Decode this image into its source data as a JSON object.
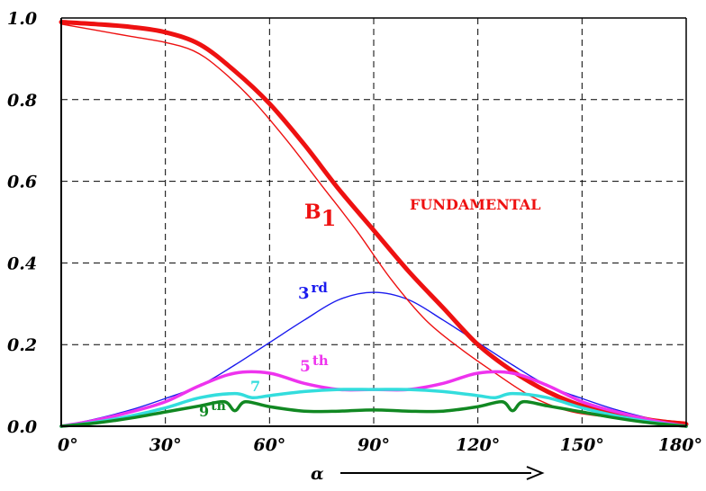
{
  "chart_data": {
    "type": "line",
    "xlabel": "α",
    "ylabel": "",
    "xlim": [
      0,
      180
    ],
    "ylim": [
      0,
      1.0
    ],
    "grid": true,
    "x_ticks": [
      {
        "value": 0,
        "label": "0°"
      },
      {
        "value": 30,
        "label": "30°"
      },
      {
        "value": 60,
        "label": "60°"
      },
      {
        "value": 90,
        "label": "90°"
      },
      {
        "value": 120,
        "label": "120°"
      },
      {
        "value": 150,
        "label": "150°"
      },
      {
        "value": 180,
        "label": "180°"
      }
    ],
    "y_ticks": [
      {
        "value": 0.0,
        "label": "0.0"
      },
      {
        "value": 0.2,
        "label": "0.2"
      },
      {
        "value": 0.4,
        "label": "0.4"
      },
      {
        "value": 0.6,
        "label": "0.6"
      },
      {
        "value": 0.8,
        "label": "0.8"
      },
      {
        "value": 1.0,
        "label": "1.0"
      }
    ],
    "series": [
      {
        "label_main": "B",
        "label_sub": "1",
        "extra_label": "FUNDAMENTAL",
        "color": "#ee1111",
        "style": "thick",
        "points": [
          [
            0,
            0.99
          ],
          [
            10,
            0.985
          ],
          [
            20,
            0.978
          ],
          [
            30,
            0.965
          ],
          [
            40,
            0.935
          ],
          [
            50,
            0.87
          ],
          [
            60,
            0.79
          ],
          [
            70,
            0.69
          ],
          [
            80,
            0.58
          ],
          [
            90,
            0.48
          ],
          [
            100,
            0.38
          ],
          [
            110,
            0.29
          ],
          [
            120,
            0.2
          ],
          [
            130,
            0.135
          ],
          [
            140,
            0.085
          ],
          [
            150,
            0.05
          ],
          [
            160,
            0.03
          ],
          [
            170,
            0.015
          ],
          [
            180,
            0.005
          ]
        ]
      },
      {
        "name": "",
        "color": "#ee1111",
        "style": "thin",
        "points": [
          [
            0,
            0.985
          ],
          [
            10,
            0.97
          ],
          [
            20,
            0.955
          ],
          [
            30,
            0.94
          ],
          [
            38,
            0.92
          ],
          [
            45,
            0.88
          ],
          [
            55,
            0.8
          ],
          [
            65,
            0.7
          ],
          [
            75,
            0.59
          ],
          [
            85,
            0.48
          ],
          [
            95,
            0.36
          ],
          [
            105,
            0.26
          ],
          [
            115,
            0.19
          ],
          [
            125,
            0.13
          ],
          [
            135,
            0.075
          ],
          [
            145,
            0.04
          ],
          [
            155,
            0.025
          ],
          [
            165,
            0.02
          ],
          [
            180,
            0.01
          ]
        ]
      },
      {
        "label_main": "3",
        "label_sup": "rd",
        "color": "#1a1aee",
        "style": "thin",
        "points": [
          [
            0,
            0.0
          ],
          [
            10,
            0.018
          ],
          [
            20,
            0.04
          ],
          [
            30,
            0.068
          ],
          [
            40,
            0.1
          ],
          [
            50,
            0.15
          ],
          [
            60,
            0.205
          ],
          [
            70,
            0.26
          ],
          [
            80,
            0.31
          ],
          [
            90,
            0.328
          ],
          [
            100,
            0.31
          ],
          [
            110,
            0.26
          ],
          [
            120,
            0.205
          ],
          [
            130,
            0.15
          ],
          [
            140,
            0.1
          ],
          [
            150,
            0.068
          ],
          [
            160,
            0.04
          ],
          [
            170,
            0.018
          ],
          [
            180,
            0.0
          ]
        ]
      },
      {
        "label_main": "5",
        "label_sup": "th",
        "color": "#ee33ee",
        "style": "medium",
        "points": [
          [
            0,
            0.0
          ],
          [
            10,
            0.015
          ],
          [
            20,
            0.035
          ],
          [
            30,
            0.06
          ],
          [
            40,
            0.1
          ],
          [
            50,
            0.13
          ],
          [
            60,
            0.13
          ],
          [
            70,
            0.105
          ],
          [
            80,
            0.09
          ],
          [
            90,
            0.09
          ],
          [
            100,
            0.09
          ],
          [
            110,
            0.105
          ],
          [
            120,
            0.13
          ],
          [
            130,
            0.13
          ],
          [
            140,
            0.1
          ],
          [
            150,
            0.06
          ],
          [
            160,
            0.035
          ],
          [
            170,
            0.015
          ],
          [
            180,
            0.0
          ]
        ]
      },
      {
        "label_main": "7",
        "color": "#33dddd",
        "style": "medium",
        "points": [
          [
            0,
            0.0
          ],
          [
            10,
            0.01
          ],
          [
            20,
            0.025
          ],
          [
            30,
            0.045
          ],
          [
            40,
            0.07
          ],
          [
            50,
            0.08
          ],
          [
            55,
            0.07
          ],
          [
            60,
            0.075
          ],
          [
            70,
            0.085
          ],
          [
            80,
            0.09
          ],
          [
            90,
            0.09
          ],
          [
            100,
            0.09
          ],
          [
            110,
            0.085
          ],
          [
            120,
            0.075
          ],
          [
            125,
            0.07
          ],
          [
            130,
            0.08
          ],
          [
            140,
            0.07
          ],
          [
            150,
            0.045
          ],
          [
            160,
            0.025
          ],
          [
            170,
            0.01
          ],
          [
            180,
            0.0
          ]
        ]
      },
      {
        "label_main": "9",
        "label_sup": "th",
        "color": "#118822",
        "style": "medium",
        "points": [
          [
            0,
            0.0
          ],
          [
            10,
            0.008
          ],
          [
            20,
            0.02
          ],
          [
            30,
            0.035
          ],
          [
            40,
            0.05
          ],
          [
            47,
            0.06
          ],
          [
            50,
            0.038
          ],
          [
            53,
            0.06
          ],
          [
            60,
            0.048
          ],
          [
            70,
            0.037
          ],
          [
            80,
            0.037
          ],
          [
            90,
            0.04
          ],
          [
            100,
            0.037
          ],
          [
            110,
            0.037
          ],
          [
            120,
            0.048
          ],
          [
            127,
            0.06
          ],
          [
            130,
            0.038
          ],
          [
            133,
            0.06
          ],
          [
            140,
            0.05
          ],
          [
            150,
            0.035
          ],
          [
            160,
            0.02
          ],
          [
            170,
            0.008
          ],
          [
            180,
            0.0
          ]
        ]
      }
    ]
  }
}
